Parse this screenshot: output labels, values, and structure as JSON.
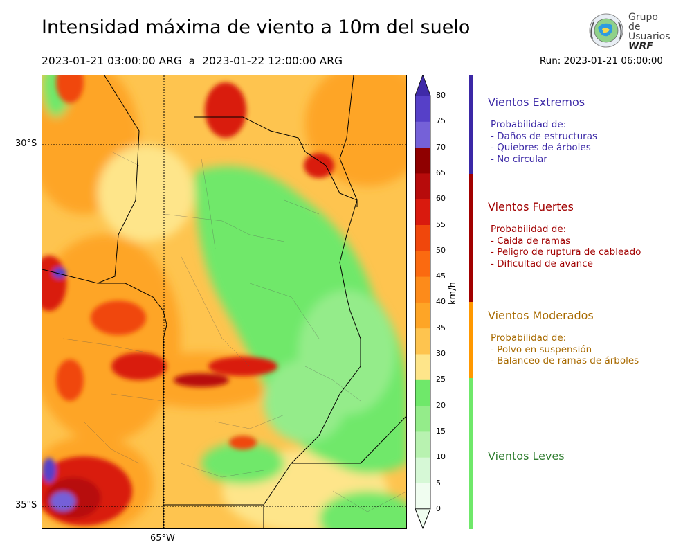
{
  "header": {
    "title": "Intensidad máxima de viento a 10m del suelo",
    "period": "2023-01-21 03:00:00 ARG  a  2023-01-22 12:00:00 ARG",
    "run": "Run: 2023-01-21 06:00:00"
  },
  "logo": {
    "line1": "Grupo de",
    "line2": "Usuarios",
    "line3": "WRF"
  },
  "map": {
    "lat_labels": [
      "30°S",
      "35°S"
    ],
    "lon_labels": [
      "65°W"
    ]
  },
  "colorbar": {
    "unit": "km/h",
    "ticks": [
      "80",
      "75",
      "70",
      "65",
      "60",
      "55",
      "50",
      "45",
      "40",
      "35",
      "30",
      "25",
      "20",
      "15",
      "10",
      "5",
      "0"
    ],
    "bins": [
      {
        "min": 0,
        "max": 5,
        "color": "#f0fdf0"
      },
      {
        "min": 5,
        "max": 10,
        "color": "#d6f8d6"
      },
      {
        "min": 10,
        "max": 15,
        "color": "#b8f2b0"
      },
      {
        "min": 15,
        "max": 20,
        "color": "#94ec8a"
      },
      {
        "min": 20,
        "max": 25,
        "color": "#6fe86a"
      },
      {
        "min": 25,
        "max": 30,
        "color": "#fee58a"
      },
      {
        "min": 30,
        "max": 35,
        "color": "#fec44f"
      },
      {
        "min": 35,
        "max": 40,
        "color": "#fea526"
      },
      {
        "min": 40,
        "max": 45,
        "color": "#fd8b1a"
      },
      {
        "min": 45,
        "max": 50,
        "color": "#fb6a10"
      },
      {
        "min": 50,
        "max": 55,
        "color": "#f0470c"
      },
      {
        "min": 55,
        "max": 60,
        "color": "#d91a0e"
      },
      {
        "min": 60,
        "max": 65,
        "color": "#b70b0b"
      },
      {
        "min": 65,
        "max": 70,
        "color": "#8f0000"
      },
      {
        "min": 70,
        "max": 75,
        "color": "#7561d8"
      },
      {
        "min": 75,
        "max": 80,
        "color": "#5640c8"
      },
      {
        "min": 80,
        "max": 85,
        "color": "#3f2aa8"
      }
    ]
  },
  "categories": [
    {
      "title": "Vientos Extremos",
      "color": "#3b28a6",
      "lines": [
        "Probabilidad de:",
        "- Daños de estructuras",
        "- Quiebres de árboles",
        "- No circular"
      ]
    },
    {
      "title": "Vientos Fuertes",
      "color": "#a10000",
      "lines": [
        "Probabilidad de:",
        "- Caida de ramas",
        "- Peligro de ruptura de cableado",
        "- Dificultad de avance"
      ]
    },
    {
      "title": "Vientos Moderados",
      "color": "#a86a00",
      "lines": [
        "Probabilidad de:",
        "- Polvo en suspensión",
        "- Balanceo de ramas de árboles"
      ]
    },
    {
      "title": "Vientos Leves",
      "color": "#2f7d2f",
      "lines": []
    }
  ],
  "category_bar_colors": [
    "#3b28a6",
    "#a10000",
    "#ff9800",
    "#6fe86a"
  ]
}
